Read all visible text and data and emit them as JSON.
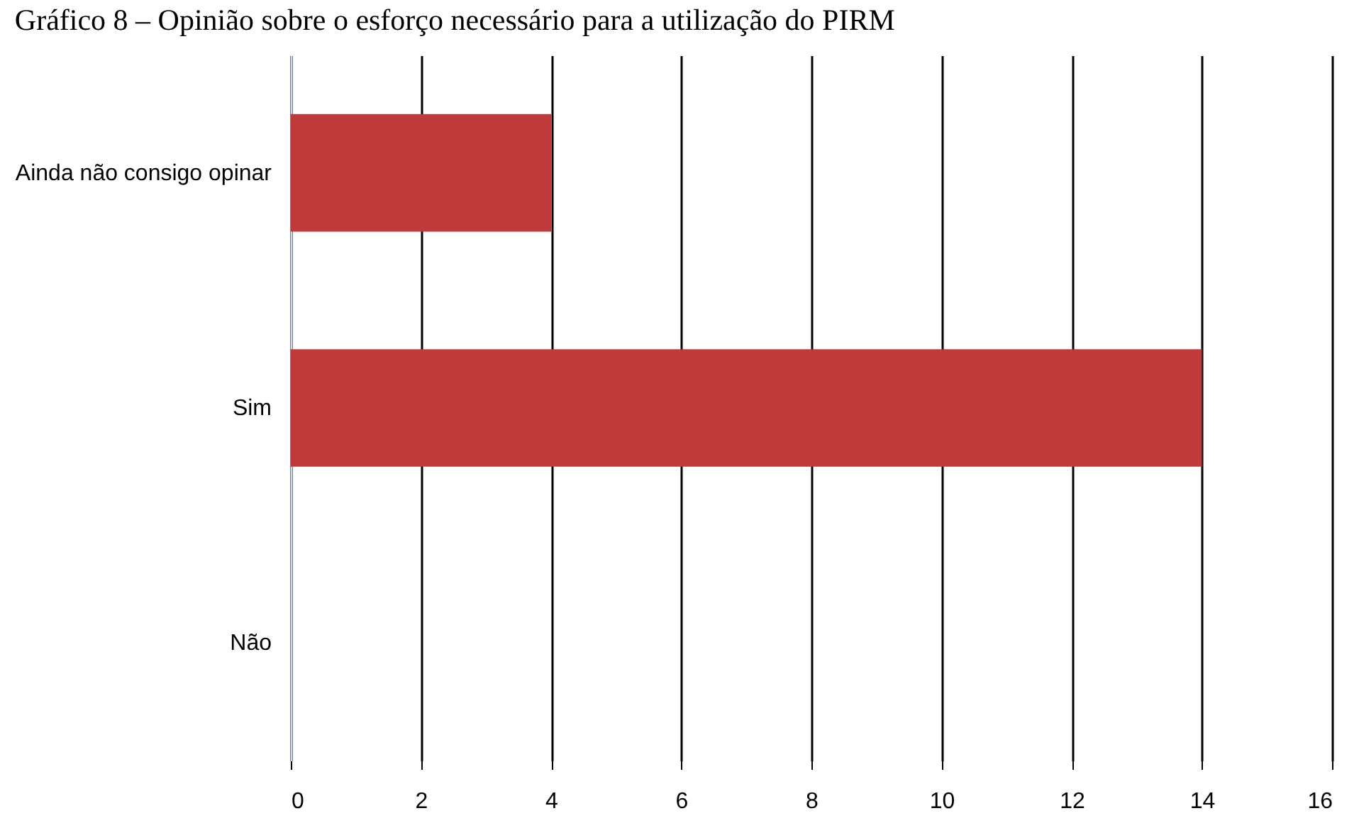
{
  "chart_data": {
    "type": "bar",
    "orientation": "horizontal",
    "title": "Gráfico 8 – Opinião sobre o esforço necessário para a utilização do PIRM",
    "categories": [
      "Ainda não consigo opinar",
      "Sim",
      "Não"
    ],
    "values": [
      4,
      14,
      0
    ],
    "color": "#c0393b",
    "xlim": [
      0,
      16
    ],
    "xticks": [
      0,
      2,
      4,
      6,
      8,
      10,
      12,
      14,
      16
    ],
    "grid": "x"
  }
}
